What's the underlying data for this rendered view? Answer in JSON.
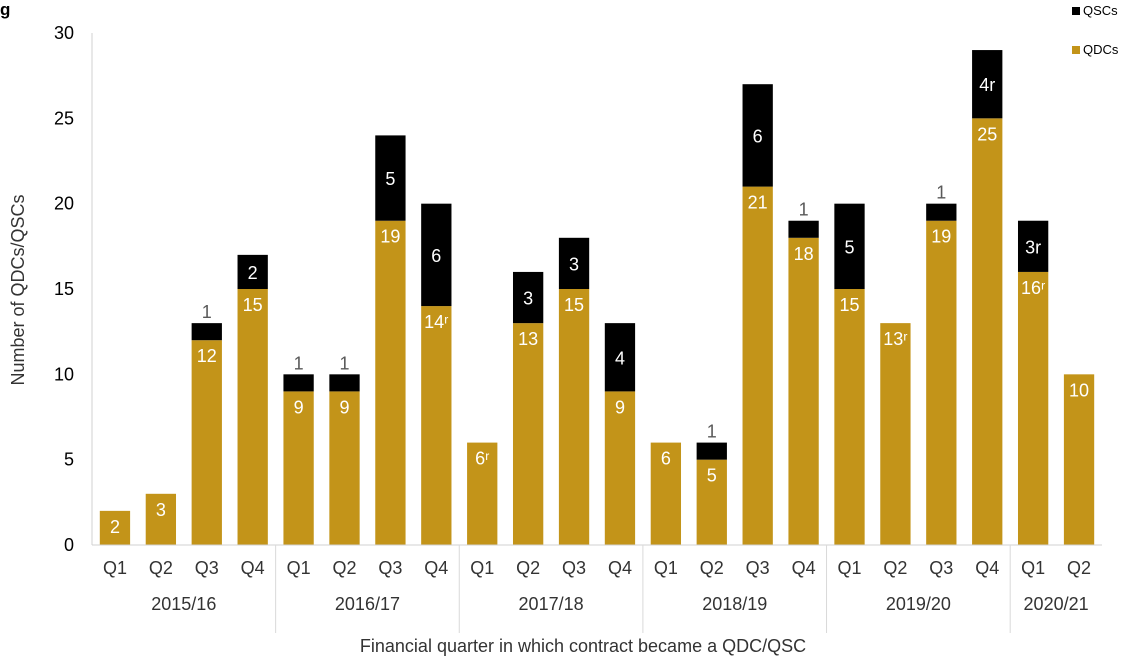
{
  "chart_data": {
    "type": "bar",
    "stacked": true,
    "title": "g",
    "xlabel": "Financial quarter in which contract became a QDC/QSC",
    "ylabel": "Number of QDCs/QSCs",
    "ylim": [
      0,
      30
    ],
    "yticks": [
      "0",
      "5",
      "10",
      "15",
      "20",
      "25",
      "30"
    ],
    "grid": false,
    "legend_position": "top-right",
    "categories": [
      "Q1",
      "Q2",
      "Q3",
      "Q4",
      "Q1",
      "Q2",
      "Q3",
      "Q4",
      "Q1",
      "Q2",
      "Q3",
      "Q4",
      "Q1",
      "Q2",
      "Q3",
      "Q4",
      "Q1",
      "Q2",
      "Q3",
      "Q4",
      "Q1",
      "Q2"
    ],
    "year_groups": [
      {
        "label": "2015/16",
        "count": 4
      },
      {
        "label": "2016/17",
        "count": 4
      },
      {
        "label": "2017/18",
        "count": 4
      },
      {
        "label": "2018/19",
        "count": 4
      },
      {
        "label": "2019/20",
        "count": 4
      },
      {
        "label": "2020/21",
        "count": 2
      }
    ],
    "series": [
      {
        "name": "QDCs",
        "color": "#c39419",
        "label_color": "#ffffff",
        "values": [
          2,
          3,
          12,
          15,
          9,
          9,
          19,
          14,
          6,
          13,
          15,
          9,
          6,
          5,
          21,
          18,
          15,
          13,
          19,
          25,
          16,
          10
        ],
        "labels": [
          "2",
          "3",
          "12",
          "15",
          "9",
          "9",
          "19",
          "14ʳ",
          "6ʳ",
          "13",
          "15",
          "9",
          "6",
          "5",
          "21",
          "18",
          "15",
          "13ʳ",
          "19",
          "25",
          "16ʳ",
          "10"
        ]
      },
      {
        "name": "QSCs",
        "color": "#000000",
        "label_color": "#ffffff",
        "values": [
          0,
          0,
          1,
          2,
          1,
          1,
          5,
          6,
          0,
          3,
          3,
          4,
          0,
          1,
          6,
          1,
          5,
          0,
          1,
          4,
          3,
          0
        ],
        "labels": [
          "",
          "",
          "1",
          "2",
          "1",
          "1",
          "5",
          "6",
          "",
          "3",
          "3",
          "4",
          "",
          "1",
          "6",
          "1",
          "5",
          "",
          "1",
          "4r",
          "3r",
          ""
        ]
      }
    ]
  }
}
